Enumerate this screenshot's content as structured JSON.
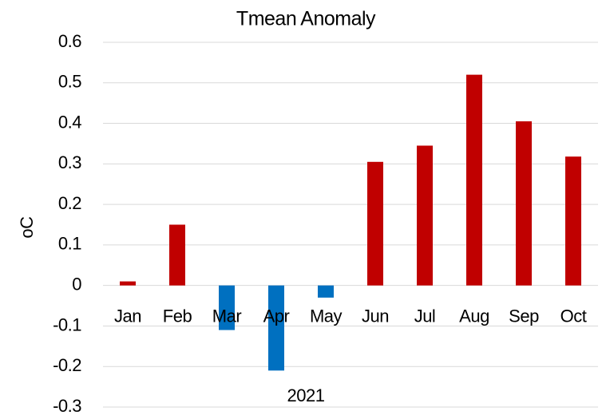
{
  "chart_data": {
    "type": "bar",
    "title": "Tmean Anomaly",
    "y_label": "oC",
    "x_label": "2021",
    "categories": [
      "Jan",
      "Feb",
      "Mar",
      "Apr",
      "May",
      "Jun",
      "Jul",
      "Aug",
      "Sep",
      "Oct"
    ],
    "values": [
      0.01,
      0.15,
      -0.11,
      -0.21,
      -0.03,
      0.305,
      0.345,
      0.52,
      0.405,
      0.318
    ],
    "colors": [
      "#c00000",
      "#c00000",
      "#0070c0",
      "#0070c0",
      "#0070c0",
      "#c00000",
      "#c00000",
      "#c00000",
      "#c00000",
      "#c00000"
    ],
    "ylim": [
      -0.3,
      0.6
    ],
    "yticks": [
      -0.3,
      -0.2,
      -0.1,
      0,
      0.1,
      0.2,
      0.3,
      0.4,
      0.5,
      0.6
    ],
    "grid": true
  }
}
